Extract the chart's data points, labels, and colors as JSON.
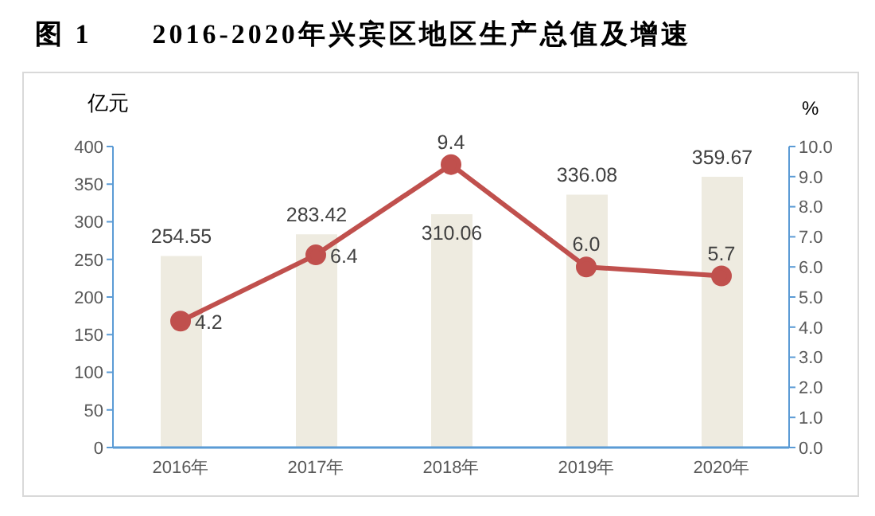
{
  "chart_data": {
    "type": "bar",
    "title": "图 1　　2016-2020年兴宾区地区生产总值及增速",
    "ylabel": "亿元",
    "y2label": "%",
    "categories": [
      "2016年",
      "2017年",
      "2018年",
      "2019年",
      "2020年"
    ],
    "series": [
      {
        "color": "#eeebe0",
        "values": [
          254.55,
          283.42,
          310.06,
          336.08,
          359.67
        ]
      },
      {
        "type": "line",
        "axis": "y2",
        "color": "#c0504d",
        "values": [
          4.2,
          6.4,
          9.4,
          6.0,
          5.7
        ],
        "value_labels": [
          "4.2",
          "6.4",
          "9.4",
          "6.0",
          "5.7"
        ],
        "marker": "circle"
      }
    ],
    "ylim": [
      0,
      400
    ],
    "yticks": [
      0,
      50,
      100,
      150,
      200,
      250,
      300,
      350,
      400
    ],
    "y2lim": [
      0,
      10
    ],
    "y2ticks": [
      {
        "value": 0,
        "label": "0.0"
      },
      {
        "value": 1,
        "label": "1.0"
      },
      {
        "value": 2,
        "label": "2.0"
      },
      {
        "value": 3,
        "label": "3.0"
      },
      {
        "value": 4,
        "label": "4.0"
      },
      {
        "value": 5,
        "label": "5.0"
      },
      {
        "value": 6,
        "label": "6.0"
      },
      {
        "value": 7,
        "label": "7.0"
      },
      {
        "value": 8,
        "label": "8.0"
      },
      {
        "value": 9,
        "label": "9.0"
      },
      {
        "value": 10,
        "label": "10.0"
      }
    ],
    "data_labels": true,
    "grid": false,
    "legend": false
  }
}
